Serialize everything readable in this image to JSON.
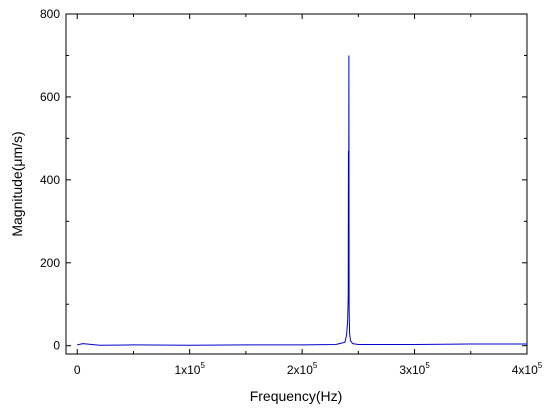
{
  "chart_data": {
    "type": "line",
    "title": "",
    "xlabel": "Frequency(Hz)",
    "ylabel": "Magnitude(μm/s)",
    "xlim": [
      -10000,
      400000
    ],
    "ylim": [
      -20,
      800
    ],
    "x_ticks": [
      {
        "value": 0,
        "mantissa": "0",
        "exp": ""
      },
      {
        "value": 100000,
        "mantissa": "1x10",
        "exp": "5"
      },
      {
        "value": 200000,
        "mantissa": "2x10",
        "exp": "5"
      },
      {
        "value": 300000,
        "mantissa": "3x10",
        "exp": "5"
      },
      {
        "value": 400000,
        "mantissa": "4x10",
        "exp": "5"
      }
    ],
    "y_ticks": [
      {
        "value": 0,
        "label": "0"
      },
      {
        "value": 200,
        "label": "200"
      },
      {
        "value": 400,
        "label": "400"
      },
      {
        "value": 600,
        "label": "600"
      },
      {
        "value": 800,
        "label": "800"
      }
    ],
    "grid": false,
    "legend": "none",
    "series": [
      {
        "color": "#0000cc",
        "x": [
          0,
          5000,
          20000,
          50000,
          100000,
          150000,
          200000,
          230000,
          238000,
          239500,
          240500,
          241000,
          241200,
          241400,
          241600,
          241800,
          242200,
          243000,
          245000,
          250000,
          300000,
          350000,
          400000
        ],
        "y": [
          2,
          5,
          1,
          2,
          1,
          2,
          2,
          3,
          8,
          25,
          60,
          120,
          470,
          150,
          700,
          90,
          30,
          12,
          5,
          3,
          3,
          4,
          4
        ]
      }
    ]
  }
}
